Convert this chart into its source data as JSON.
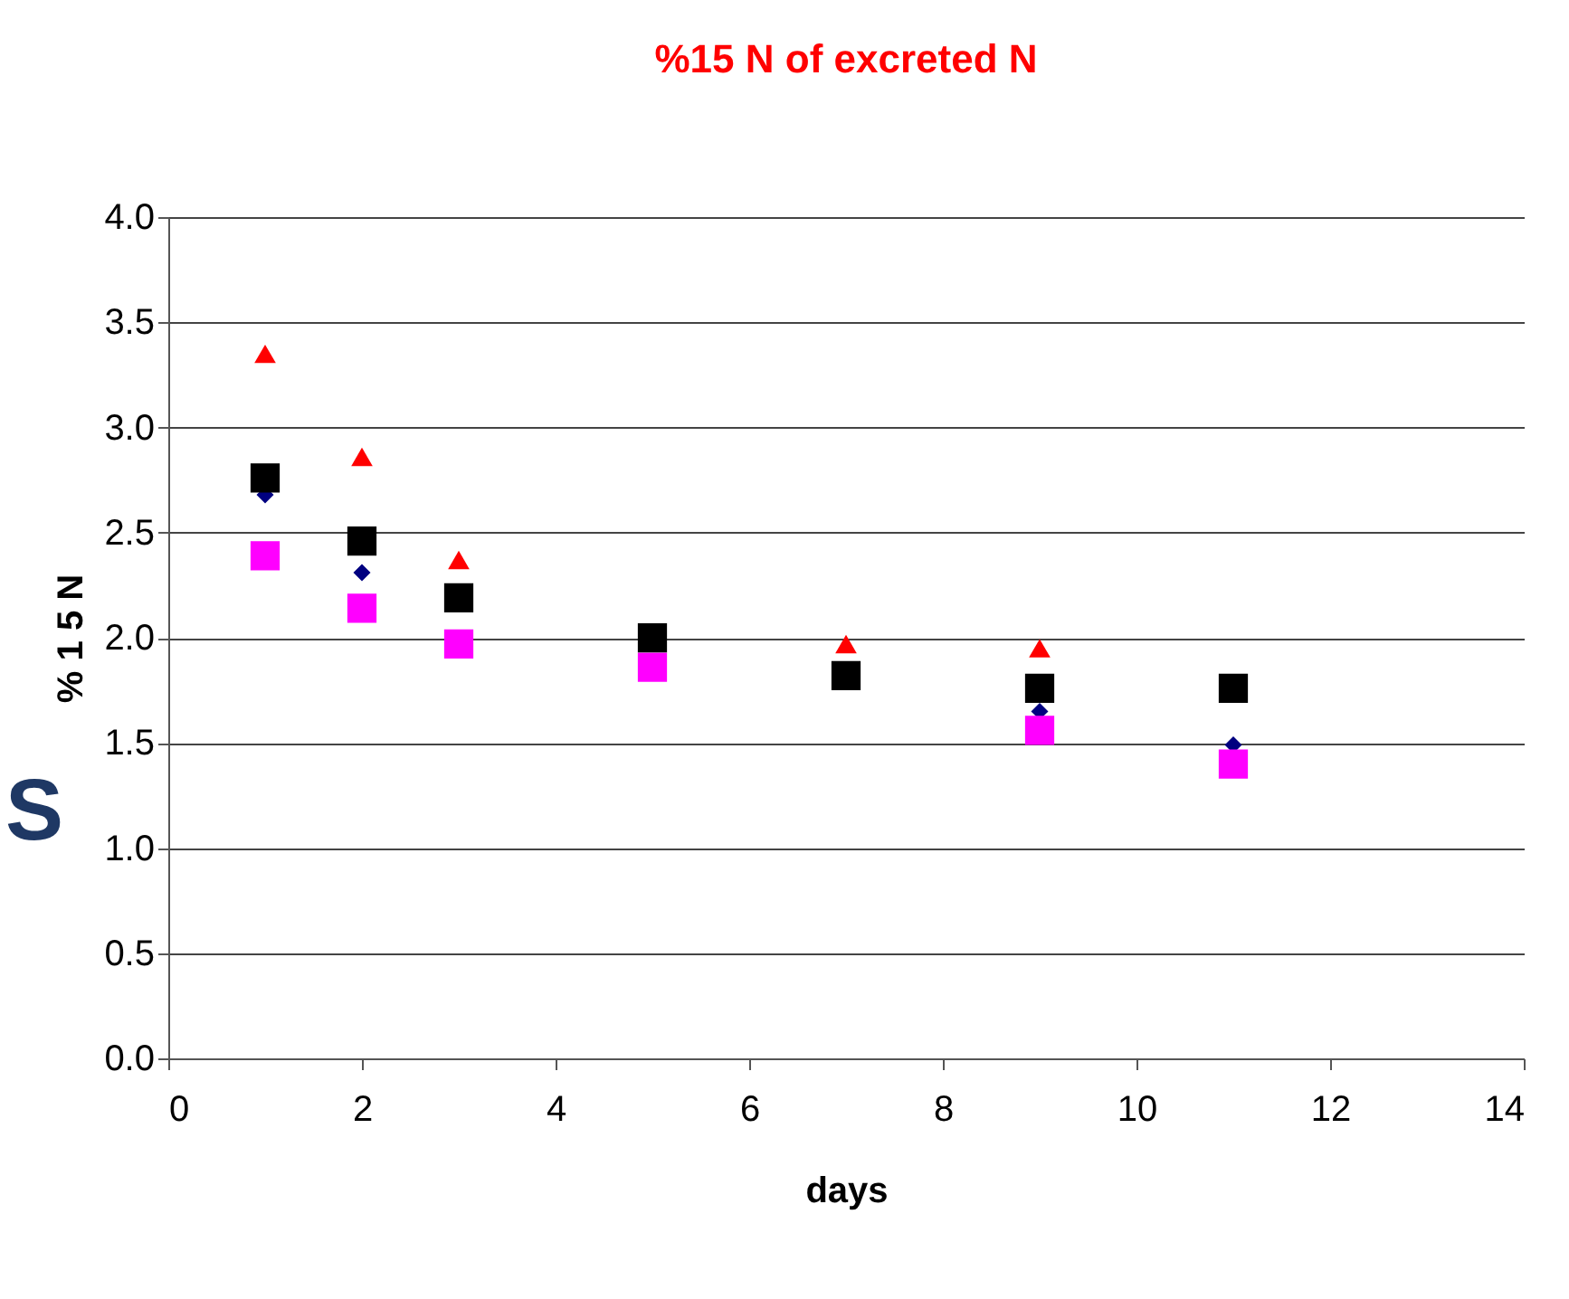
{
  "chart_data": {
    "type": "scatter",
    "title": "%15 N of excreted N",
    "xlabel": "days",
    "ylabel": "% 1 5 N",
    "x": [
      1,
      2,
      3,
      5,
      7,
      9,
      11
    ],
    "series": [
      {
        "color": "#000080",
        "marker": "diamond",
        "values": [
          2.68,
          2.31,
          null,
          null,
          null,
          1.65,
          1.49
        ]
      },
      {
        "color": "#ff00ff",
        "marker": "square",
        "values": [
          2.39,
          2.14,
          1.97,
          1.86,
          null,
          1.56,
          1.4
        ]
      },
      {
        "color": "#ff0000",
        "marker": "triangle",
        "values": [
          3.35,
          2.86,
          2.37,
          null,
          1.97,
          1.95,
          null
        ]
      },
      {
        "color": "#000000",
        "marker": "square",
        "values": [
          2.76,
          2.46,
          2.19,
          2.0,
          1.82,
          1.76,
          1.76
        ]
      }
    ],
    "xlim": [
      0,
      14
    ],
    "xticks": [
      0,
      2,
      4,
      6,
      8,
      10,
      12,
      14
    ],
    "ylim": [
      0,
      4
    ],
    "yticks": [
      {
        "value": 0,
        "label": "0.0"
      },
      0.5,
      {
        "value": 1,
        "label": "1.0"
      },
      1.5,
      {
        "value": 2,
        "label": "2.0"
      },
      2.5,
      {
        "value": 3,
        "label": "3.0"
      },
      3.5,
      {
        "value": 4,
        "label": "4.0"
      }
    ],
    "grid": "y",
    "annotations": [
      "S"
    ]
  }
}
